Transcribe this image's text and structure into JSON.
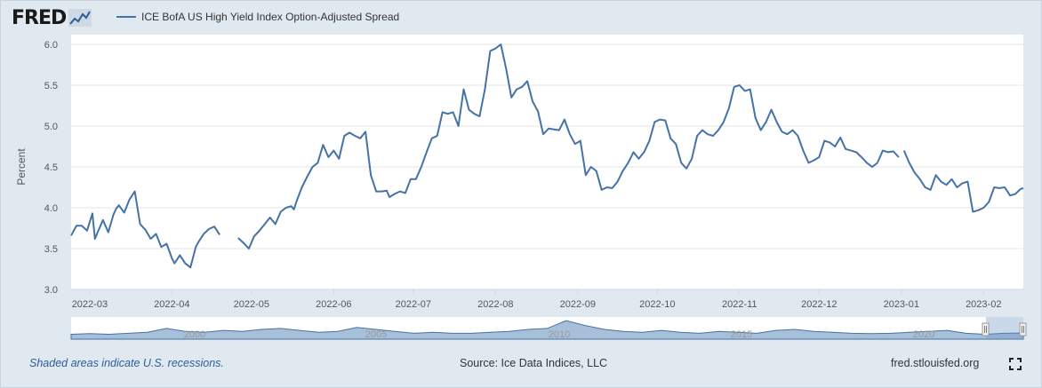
{
  "header": {
    "logo_text": "FRED",
    "legend_label": "ICE BofA US High Yield Index Option-Adjusted Spread"
  },
  "footer": {
    "recession_note": "Shaded areas indicate U.S. recessions.",
    "source": "Source: Ice Data Indices, LLC",
    "site": "fred.stlouisfed.org"
  },
  "colors": {
    "series": "#4572a7",
    "background": "#e1e9f0",
    "plot": "#ffffff",
    "navigator_fill": "#a8bfd9"
  },
  "icons": [
    "fred-logo-graph-icon",
    "fullscreen-icon",
    "navigator-handle-icon"
  ],
  "chart_data": {
    "type": "line",
    "title": "",
    "xlabel": "",
    "ylabel": "Percent",
    "ylim": [
      3.0,
      6.0
    ],
    "yticks": [
      "3.0",
      "3.5",
      "4.0",
      "4.5",
      "5.0",
      "5.5",
      "6.0"
    ],
    "xlim": [
      "2022-02-22",
      "2023-02-16"
    ],
    "xticks": [
      "2022-03",
      "2022-04",
      "2022-05",
      "2022-06",
      "2022-07",
      "2022-08",
      "2022-09",
      "2022-10",
      "2022-11",
      "2022-12",
      "2023-01",
      "2023-02"
    ],
    "grid": true,
    "legend_position": "top-left",
    "series": [
      {
        "name": "ICE BofA US High Yield Index Option-Adjusted Spread",
        "segments": [
          {
            "x": [
              "2022-02-22",
              "2022-02-24",
              "2022-02-26",
              "2022-02-28",
              "2022-03-02",
              "2022-03-03",
              "2022-03-04",
              "2022-03-06",
              "2022-03-08",
              "2022-03-10",
              "2022-03-11",
              "2022-03-12",
              "2022-03-14",
              "2022-03-16",
              "2022-03-18",
              "2022-03-20",
              "2022-03-22",
              "2022-03-24",
              "2022-03-26",
              "2022-03-28",
              "2022-03-30",
              "2022-04-01",
              "2022-04-02",
              "2022-04-04",
              "2022-04-06",
              "2022-04-08",
              "2022-04-10",
              "2022-04-11",
              "2022-04-13",
              "2022-04-15",
              "2022-04-17",
              "2022-04-19"
            ],
            "y": [
              3.66,
              3.78,
              3.78,
              3.72,
              3.93,
              3.62,
              3.7,
              3.85,
              3.7,
              3.92,
              3.99,
              4.03,
              3.94,
              4.1,
              4.2,
              3.8,
              3.73,
              3.62,
              3.68,
              3.52,
              3.56,
              3.38,
              3.32,
              3.42,
              3.32,
              3.27,
              3.52,
              3.58,
              3.68,
              3.74,
              3.77,
              3.67
            ]
          },
          {
            "x": [
              "2022-04-26",
              "2022-04-28",
              "2022-04-30",
              "2022-05-02",
              "2022-05-04",
              "2022-05-06",
              "2022-05-08",
              "2022-05-10",
              "2022-05-12",
              "2022-05-14",
              "2022-05-16",
              "2022-05-17",
              "2022-05-18",
              "2022-05-20",
              "2022-05-22",
              "2022-05-24",
              "2022-05-26",
              "2022-05-28",
              "2022-05-30",
              "2022-06-01",
              "2022-06-03",
              "2022-06-05",
              "2022-06-07",
              "2022-06-09",
              "2022-06-11",
              "2022-06-13",
              "2022-06-15",
              "2022-06-17",
              "2022-06-19",
              "2022-06-21",
              "2022-06-22",
              "2022-06-24",
              "2022-06-26",
              "2022-06-28",
              "2022-06-30",
              "2022-07-02",
              "2022-07-04",
              "2022-07-06",
              "2022-07-08",
              "2022-07-10",
              "2022-07-12",
              "2022-07-14",
              "2022-07-16",
              "2022-07-18",
              "2022-07-20",
              "2022-07-22",
              "2022-07-24",
              "2022-07-26",
              "2022-07-28",
              "2022-07-30",
              "2022-08-01",
              "2022-08-03",
              "2022-08-05",
              "2022-08-07",
              "2022-08-09",
              "2022-08-11",
              "2022-08-13",
              "2022-08-15",
              "2022-08-17",
              "2022-08-19",
              "2022-08-21",
              "2022-08-23",
              "2022-08-25",
              "2022-08-27",
              "2022-08-29",
              "2022-08-31",
              "2022-09-02",
              "2022-09-04",
              "2022-09-06",
              "2022-09-08",
              "2022-09-10",
              "2022-09-12",
              "2022-09-14",
              "2022-09-16",
              "2022-09-18",
              "2022-09-20",
              "2022-09-22",
              "2022-09-24",
              "2022-09-26",
              "2022-09-28",
              "2022-09-30",
              "2022-10-02",
              "2022-10-04",
              "2022-10-06",
              "2022-10-08",
              "2022-10-10",
              "2022-10-12",
              "2022-10-14",
              "2022-10-16",
              "2022-10-18",
              "2022-10-20",
              "2022-10-22",
              "2022-10-24",
              "2022-10-26",
              "2022-10-28",
              "2022-10-30",
              "2022-11-01",
              "2022-11-03",
              "2022-11-05",
              "2022-11-07",
              "2022-11-09",
              "2022-11-11",
              "2022-11-13",
              "2022-11-15",
              "2022-11-17",
              "2022-11-19",
              "2022-11-21",
              "2022-11-23",
              "2022-11-25",
              "2022-11-27",
              "2022-11-29",
              "2022-12-01",
              "2022-12-03",
              "2022-12-05",
              "2022-12-07",
              "2022-12-09",
              "2022-12-11",
              "2022-12-13",
              "2022-12-15",
              "2022-12-17",
              "2022-12-19",
              "2022-12-21",
              "2022-12-23"
            ],
            "y": [
              3.63,
              3.57,
              3.5,
              3.65,
              3.72,
              3.8,
              3.88,
              3.8,
              3.95,
              4.0,
              4.02,
              3.98,
              4.08,
              4.25,
              4.38,
              4.5,
              4.55,
              4.77,
              4.62,
              4.7,
              4.6,
              4.88,
              4.92,
              4.88,
              4.85,
              4.93,
              4.4,
              4.2,
              4.2,
              4.21,
              4.13,
              4.17,
              4.2,
              4.18,
              4.35,
              4.35,
              4.5,
              4.68,
              4.85,
              4.88,
              5.17,
              5.15,
              5.17,
              5.0,
              5.45,
              5.2,
              5.15,
              5.12,
              5.45,
              5.92,
              5.95,
              6.0,
              5.7,
              5.35,
              5.45,
              5.48,
              5.55,
              5.3,
              5.18,
              4.9,
              4.97,
              4.96,
              4.95,
              5.08,
              4.9,
              4.78,
              4.82,
              4.4,
              4.5,
              4.45,
              4.22,
              4.25,
              4.24,
              4.32,
              4.45,
              4.55,
              4.68,
              4.6,
              4.68,
              4.82,
              5.05,
              5.08,
              5.07,
              4.85,
              4.78,
              4.55,
              4.48,
              4.6,
              4.88,
              4.95,
              4.9,
              4.88,
              4.95,
              5.05,
              5.22,
              5.48,
              5.5,
              5.43,
              5.45,
              5.1,
              4.95,
              5.05,
              5.2,
              5.05,
              4.93,
              4.9,
              4.95,
              4.88,
              4.7,
              4.55,
              4.58,
              4.62,
              4.82,
              4.8,
              4.75,
              4.86,
              4.72,
              4.7,
              4.68,
              4.62,
              4.55,
              4.5,
              4.55
            ]
          },
          {
            "x": [
              "2022-12-23",
              "2022-12-25",
              "2022-12-27",
              "2022-12-29",
              "2022-12-31"
            ],
            "y": [
              4.55,
              4.7,
              4.68,
              4.69,
              4.62
            ]
          },
          {
            "x": [
              "2023-01-02",
              "2023-01-04",
              "2023-01-06",
              "2023-01-08",
              "2023-01-10",
              "2023-01-12",
              "2023-01-14",
              "2023-01-16",
              "2023-01-18",
              "2023-01-20",
              "2023-01-22",
              "2023-01-24",
              "2023-01-26",
              "2023-01-28",
              "2023-01-30",
              "2023-02-01",
              "2023-02-03",
              "2023-02-05",
              "2023-02-07",
              "2023-02-09",
              "2023-02-11",
              "2023-02-13",
              "2023-02-15",
              "2023-02-16"
            ],
            "y": [
              4.7,
              4.55,
              4.43,
              4.35,
              4.25,
              4.22,
              4.4,
              4.32,
              4.28,
              4.35,
              4.25,
              4.3,
              4.32,
              3.95,
              3.97,
              4.0,
              4.07,
              4.25,
              4.24,
              4.25,
              4.15,
              4.17,
              4.23,
              4.24
            ]
          }
        ]
      }
    ],
    "navigator": {
      "labels": [
        "2000",
        "2005",
        "2010",
        "2015",
        "2020"
      ]
    }
  }
}
